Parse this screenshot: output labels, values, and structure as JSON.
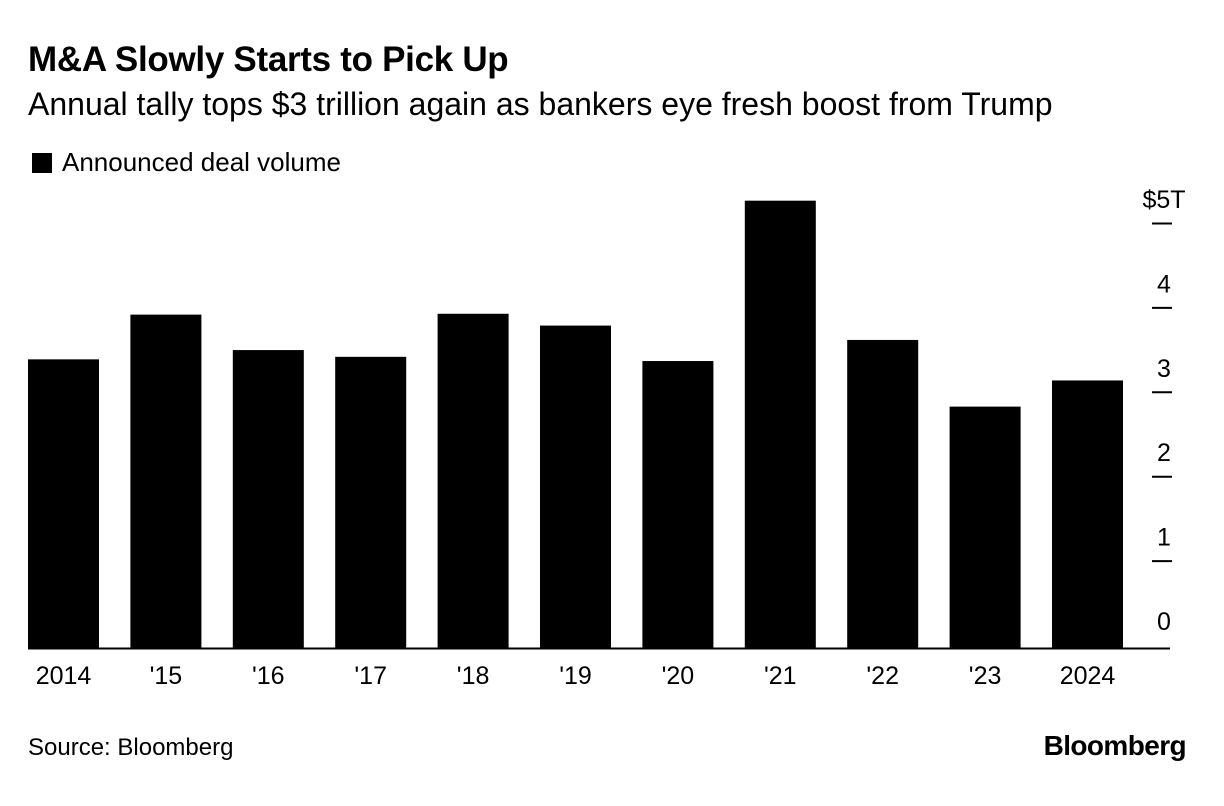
{
  "header": {
    "title": "M&A Slowly Starts to Pick Up",
    "subtitle": "Annual tally tops $3 trillion again as bankers eye fresh boost from Trump"
  },
  "legend": {
    "label": "Announced deal volume",
    "color": "#000000"
  },
  "footer": {
    "source": "Source: Bloomberg",
    "brand": "Bloomberg"
  },
  "chart_data": {
    "type": "bar",
    "title": "M&A Slowly Starts to Pick Up",
    "subtitle": "Annual tally tops $3 trillion again as bankers eye fresh boost from Trump",
    "xlabel": "",
    "ylabel": "",
    "categories": [
      "2014",
      "'15",
      "'16",
      "'17",
      "'18",
      "'19",
      "'20",
      "'21",
      "'22",
      "'23",
      "2024"
    ],
    "series": [
      {
        "name": "Announced deal volume",
        "color": "#000000",
        "values": [
          3.42,
          3.95,
          3.53,
          3.45,
          3.96,
          3.82,
          3.4,
          5.3,
          3.65,
          2.86,
          3.17
        ]
      }
    ],
    "ylim": [
      0,
      5
    ],
    "yticks": [
      0,
      1,
      2,
      3,
      4,
      5
    ],
    "ytick_labels": [
      "0",
      "1",
      "2",
      "3",
      "4",
      "$5T"
    ],
    "y_axis_side": "right",
    "grid": false,
    "legend_position": "top-left"
  }
}
